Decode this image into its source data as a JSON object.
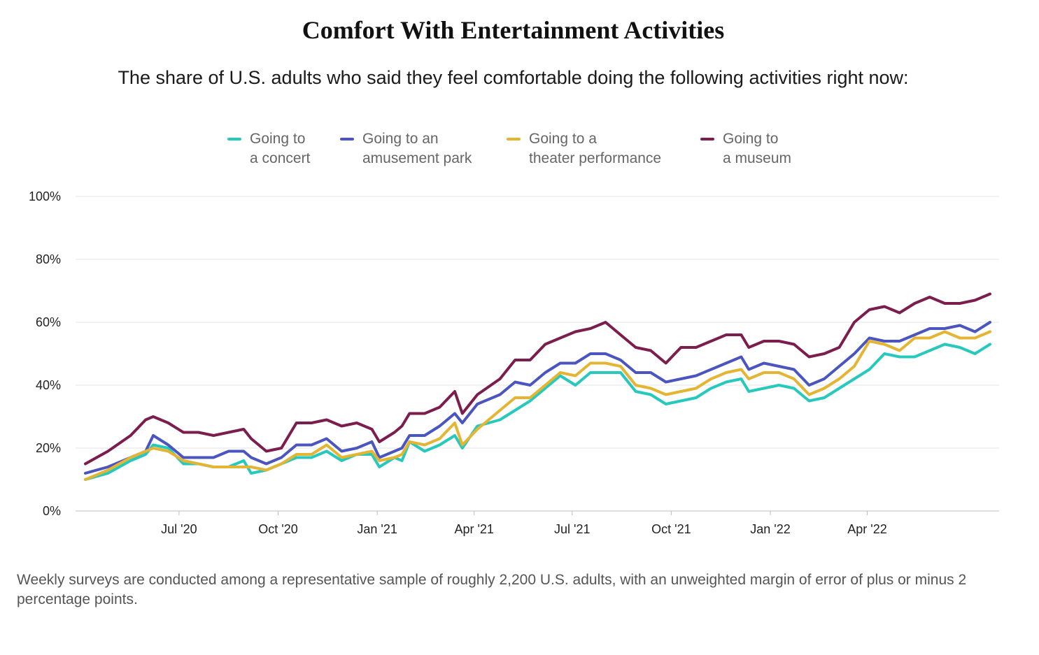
{
  "chart_data": {
    "type": "line",
    "title": "Comfort With Entertainment Activities",
    "subtitle": "The share of U.S. adults who said they feel comfortable doing the following activities right now:",
    "x_range": [
      "2020-04-05",
      "2022-07-24"
    ],
    "x_ticks": [
      {
        "date": "2020-07-01",
        "label": "Jul '20"
      },
      {
        "date": "2020-10-01",
        "label": "Oct '20"
      },
      {
        "date": "2021-01-01",
        "label": "Jan '21"
      },
      {
        "date": "2021-04-01",
        "label": "Apr '21"
      },
      {
        "date": "2021-07-01",
        "label": "Jul '21"
      },
      {
        "date": "2021-10-01",
        "label": "Oct '21"
      },
      {
        "date": "2022-01-01",
        "label": "Jan '22"
      },
      {
        "date": "2022-04-01",
        "label": "Apr '22"
      }
    ],
    "y_range": [
      0,
      100
    ],
    "y_ticks": [
      0,
      20,
      40,
      60,
      80,
      100
    ],
    "y_tick_labels": [
      "0%",
      "20%",
      "40%",
      "60%",
      "80%",
      "100%"
    ],
    "grid": "horizontal",
    "legend_position": "top",
    "series": [
      {
        "name": "Going to\na concert",
        "color": "#26c9bc",
        "points": [
          [
            "2020-04-05",
            10
          ],
          [
            "2020-04-26",
            12
          ],
          [
            "2020-05-17",
            16
          ],
          [
            "2020-05-31",
            18
          ],
          [
            "2020-06-07",
            21
          ],
          [
            "2020-06-21",
            20
          ],
          [
            "2020-07-05",
            15
          ],
          [
            "2020-07-19",
            15
          ],
          [
            "2020-08-02",
            14
          ],
          [
            "2020-08-16",
            14
          ],
          [
            "2020-08-30",
            16
          ],
          [
            "2020-09-06",
            12
          ],
          [
            "2020-09-20",
            13
          ],
          [
            "2020-10-04",
            15
          ],
          [
            "2020-10-18",
            17
          ],
          [
            "2020-11-01",
            17
          ],
          [
            "2020-11-15",
            19
          ],
          [
            "2020-11-29",
            16
          ],
          [
            "2020-12-13",
            18
          ],
          [
            "2020-12-27",
            18
          ],
          [
            "2021-01-03",
            14
          ],
          [
            "2021-01-17",
            17
          ],
          [
            "2021-01-24",
            16
          ],
          [
            "2021-01-31",
            22
          ],
          [
            "2021-02-14",
            19
          ],
          [
            "2021-02-28",
            21
          ],
          [
            "2021-03-14",
            24
          ],
          [
            "2021-03-21",
            20
          ],
          [
            "2021-04-04",
            27
          ],
          [
            "2021-04-25",
            29
          ],
          [
            "2021-05-09",
            32
          ],
          [
            "2021-05-23",
            35
          ],
          [
            "2021-06-06",
            39
          ],
          [
            "2021-06-20",
            43
          ],
          [
            "2021-07-04",
            40
          ],
          [
            "2021-07-18",
            44
          ],
          [
            "2021-08-01",
            44
          ],
          [
            "2021-08-15",
            44
          ],
          [
            "2021-08-29",
            38
          ],
          [
            "2021-09-12",
            37
          ],
          [
            "2021-09-26",
            34
          ],
          [
            "2021-10-10",
            35
          ],
          [
            "2021-10-24",
            36
          ],
          [
            "2021-11-07",
            39
          ],
          [
            "2021-11-21",
            41
          ],
          [
            "2021-12-05",
            42
          ],
          [
            "2021-12-12",
            38
          ],
          [
            "2021-12-26",
            39
          ],
          [
            "2022-01-09",
            40
          ],
          [
            "2022-01-23",
            39
          ],
          [
            "2022-02-06",
            35
          ],
          [
            "2022-02-20",
            36
          ],
          [
            "2022-03-06",
            39
          ],
          [
            "2022-03-20",
            42
          ],
          [
            "2022-04-03",
            45
          ],
          [
            "2022-04-17",
            50
          ],
          [
            "2022-05-01",
            49
          ],
          [
            "2022-05-15",
            49
          ],
          [
            "2022-05-29",
            51
          ],
          [
            "2022-06-12",
            53
          ],
          [
            "2022-06-26",
            52
          ],
          [
            "2022-07-10",
            50
          ],
          [
            "2022-07-24",
            53
          ]
        ]
      },
      {
        "name": "Going to an\namusement park",
        "color": "#4a55bf",
        "points": [
          [
            "2020-04-05",
            12
          ],
          [
            "2020-04-26",
            14
          ],
          [
            "2020-05-17",
            17
          ],
          [
            "2020-05-31",
            19
          ],
          [
            "2020-06-07",
            24
          ],
          [
            "2020-06-21",
            21
          ],
          [
            "2020-07-05",
            17
          ],
          [
            "2020-07-19",
            17
          ],
          [
            "2020-08-02",
            17
          ],
          [
            "2020-08-16",
            19
          ],
          [
            "2020-08-30",
            19
          ],
          [
            "2020-09-06",
            17
          ],
          [
            "2020-09-20",
            15
          ],
          [
            "2020-10-04",
            17
          ],
          [
            "2020-10-18",
            21
          ],
          [
            "2020-11-01",
            21
          ],
          [
            "2020-11-15",
            23
          ],
          [
            "2020-11-29",
            19
          ],
          [
            "2020-12-13",
            20
          ],
          [
            "2020-12-27",
            22
          ],
          [
            "2021-01-03",
            17
          ],
          [
            "2021-01-17",
            19
          ],
          [
            "2021-01-24",
            20
          ],
          [
            "2021-01-31",
            24
          ],
          [
            "2021-02-14",
            24
          ],
          [
            "2021-02-28",
            27
          ],
          [
            "2021-03-14",
            31
          ],
          [
            "2021-03-21",
            28
          ],
          [
            "2021-04-04",
            34
          ],
          [
            "2021-04-25",
            37
          ],
          [
            "2021-05-09",
            41
          ],
          [
            "2021-05-23",
            40
          ],
          [
            "2021-06-06",
            44
          ],
          [
            "2021-06-20",
            47
          ],
          [
            "2021-07-04",
            47
          ],
          [
            "2021-07-18",
            50
          ],
          [
            "2021-08-01",
            50
          ],
          [
            "2021-08-15",
            48
          ],
          [
            "2021-08-29",
            44
          ],
          [
            "2021-09-12",
            44
          ],
          [
            "2021-09-26",
            41
          ],
          [
            "2021-10-10",
            42
          ],
          [
            "2021-10-24",
            43
          ],
          [
            "2021-11-07",
            45
          ],
          [
            "2021-11-21",
            47
          ],
          [
            "2021-12-05",
            49
          ],
          [
            "2021-12-12",
            45
          ],
          [
            "2021-12-26",
            47
          ],
          [
            "2022-01-09",
            46
          ],
          [
            "2022-01-23",
            45
          ],
          [
            "2022-02-06",
            40
          ],
          [
            "2022-02-20",
            42
          ],
          [
            "2022-03-06",
            46
          ],
          [
            "2022-03-20",
            50
          ],
          [
            "2022-04-03",
            55
          ],
          [
            "2022-04-17",
            54
          ],
          [
            "2022-05-01",
            54
          ],
          [
            "2022-05-15",
            56
          ],
          [
            "2022-05-29",
            58
          ],
          [
            "2022-06-12",
            58
          ],
          [
            "2022-06-26",
            59
          ],
          [
            "2022-07-10",
            57
          ],
          [
            "2022-07-24",
            60
          ]
        ]
      },
      {
        "name": "Going to a\ntheater performance",
        "color": "#e3b533",
        "points": [
          [
            "2020-04-05",
            10
          ],
          [
            "2020-04-26",
            13
          ],
          [
            "2020-05-17",
            17
          ],
          [
            "2020-05-31",
            19
          ],
          [
            "2020-06-07",
            20
          ],
          [
            "2020-06-21",
            19
          ],
          [
            "2020-07-05",
            16
          ],
          [
            "2020-07-19",
            15
          ],
          [
            "2020-08-02",
            14
          ],
          [
            "2020-08-16",
            14
          ],
          [
            "2020-08-30",
            14
          ],
          [
            "2020-09-06",
            14
          ],
          [
            "2020-09-20",
            13
          ],
          [
            "2020-10-04",
            15
          ],
          [
            "2020-10-18",
            18
          ],
          [
            "2020-11-01",
            18
          ],
          [
            "2020-11-15",
            21
          ],
          [
            "2020-11-29",
            17
          ],
          [
            "2020-12-13",
            18
          ],
          [
            "2020-12-27",
            19
          ],
          [
            "2021-01-03",
            16
          ],
          [
            "2021-01-17",
            17
          ],
          [
            "2021-01-24",
            18
          ],
          [
            "2021-01-31",
            22
          ],
          [
            "2021-02-14",
            21
          ],
          [
            "2021-02-28",
            23
          ],
          [
            "2021-03-14",
            28
          ],
          [
            "2021-03-21",
            21
          ],
          [
            "2021-04-04",
            26
          ],
          [
            "2021-04-25",
            32
          ],
          [
            "2021-05-09",
            36
          ],
          [
            "2021-05-23",
            36
          ],
          [
            "2021-06-06",
            40
          ],
          [
            "2021-06-20",
            44
          ],
          [
            "2021-07-04",
            43
          ],
          [
            "2021-07-18",
            47
          ],
          [
            "2021-08-01",
            47
          ],
          [
            "2021-08-15",
            46
          ],
          [
            "2021-08-29",
            40
          ],
          [
            "2021-09-12",
            39
          ],
          [
            "2021-09-26",
            37
          ],
          [
            "2021-10-10",
            38
          ],
          [
            "2021-10-24",
            39
          ],
          [
            "2021-11-07",
            42
          ],
          [
            "2021-11-21",
            44
          ],
          [
            "2021-12-05",
            45
          ],
          [
            "2021-12-12",
            42
          ],
          [
            "2021-12-26",
            44
          ],
          [
            "2022-01-09",
            44
          ],
          [
            "2022-01-23",
            42
          ],
          [
            "2022-02-06",
            37
          ],
          [
            "2022-02-20",
            39
          ],
          [
            "2022-03-06",
            42
          ],
          [
            "2022-03-20",
            46
          ],
          [
            "2022-04-03",
            54
          ],
          [
            "2022-04-17",
            53
          ],
          [
            "2022-05-01",
            51
          ],
          [
            "2022-05-15",
            55
          ],
          [
            "2022-05-29",
            55
          ],
          [
            "2022-06-12",
            57
          ],
          [
            "2022-06-26",
            55
          ],
          [
            "2022-07-10",
            55
          ],
          [
            "2022-07-24",
            57
          ]
        ]
      },
      {
        "name": "Going to\na museum",
        "color": "#7b1e4e",
        "points": [
          [
            "2020-04-05",
            15
          ],
          [
            "2020-04-26",
            19
          ],
          [
            "2020-05-17",
            24
          ],
          [
            "2020-05-31",
            29
          ],
          [
            "2020-06-07",
            30
          ],
          [
            "2020-06-21",
            28
          ],
          [
            "2020-07-05",
            25
          ],
          [
            "2020-07-19",
            25
          ],
          [
            "2020-08-02",
            24
          ],
          [
            "2020-08-16",
            25
          ],
          [
            "2020-08-30",
            26
          ],
          [
            "2020-09-06",
            23
          ],
          [
            "2020-09-20",
            19
          ],
          [
            "2020-10-04",
            20
          ],
          [
            "2020-10-18",
            28
          ],
          [
            "2020-11-01",
            28
          ],
          [
            "2020-11-15",
            29
          ],
          [
            "2020-11-29",
            27
          ],
          [
            "2020-12-13",
            28
          ],
          [
            "2020-12-27",
            26
          ],
          [
            "2021-01-03",
            22
          ],
          [
            "2021-01-17",
            25
          ],
          [
            "2021-01-24",
            27
          ],
          [
            "2021-01-31",
            31
          ],
          [
            "2021-02-14",
            31
          ],
          [
            "2021-02-28",
            33
          ],
          [
            "2021-03-14",
            38
          ],
          [
            "2021-03-21",
            31
          ],
          [
            "2021-04-04",
            37
          ],
          [
            "2021-04-25",
            42
          ],
          [
            "2021-05-09",
            48
          ],
          [
            "2021-05-23",
            48
          ],
          [
            "2021-06-06",
            53
          ],
          [
            "2021-06-20",
            55
          ],
          [
            "2021-07-04",
            57
          ],
          [
            "2021-07-18",
            58
          ],
          [
            "2021-08-01",
            60
          ],
          [
            "2021-08-15",
            56
          ],
          [
            "2021-08-29",
            52
          ],
          [
            "2021-09-12",
            51
          ],
          [
            "2021-09-26",
            47
          ],
          [
            "2021-10-10",
            52
          ],
          [
            "2021-10-24",
            52
          ],
          [
            "2021-11-07",
            54
          ],
          [
            "2021-11-21",
            56
          ],
          [
            "2021-12-05",
            56
          ],
          [
            "2021-12-12",
            52
          ],
          [
            "2021-12-26",
            54
          ],
          [
            "2022-01-09",
            54
          ],
          [
            "2022-01-23",
            53
          ],
          [
            "2022-02-06",
            49
          ],
          [
            "2022-02-20",
            50
          ],
          [
            "2022-03-06",
            52
          ],
          [
            "2022-03-20",
            60
          ],
          [
            "2022-04-03",
            64
          ],
          [
            "2022-04-17",
            65
          ],
          [
            "2022-05-01",
            63
          ],
          [
            "2022-05-15",
            66
          ],
          [
            "2022-05-29",
            68
          ],
          [
            "2022-06-12",
            66
          ],
          [
            "2022-06-26",
            66
          ],
          [
            "2022-07-10",
            67
          ],
          [
            "2022-07-24",
            69
          ]
        ]
      }
    ]
  },
  "footnote": "Weekly surveys are conducted among a representative sample of roughly 2,200 U.S. adults, with an unweighted margin of error of plus or minus 2 percentage points."
}
